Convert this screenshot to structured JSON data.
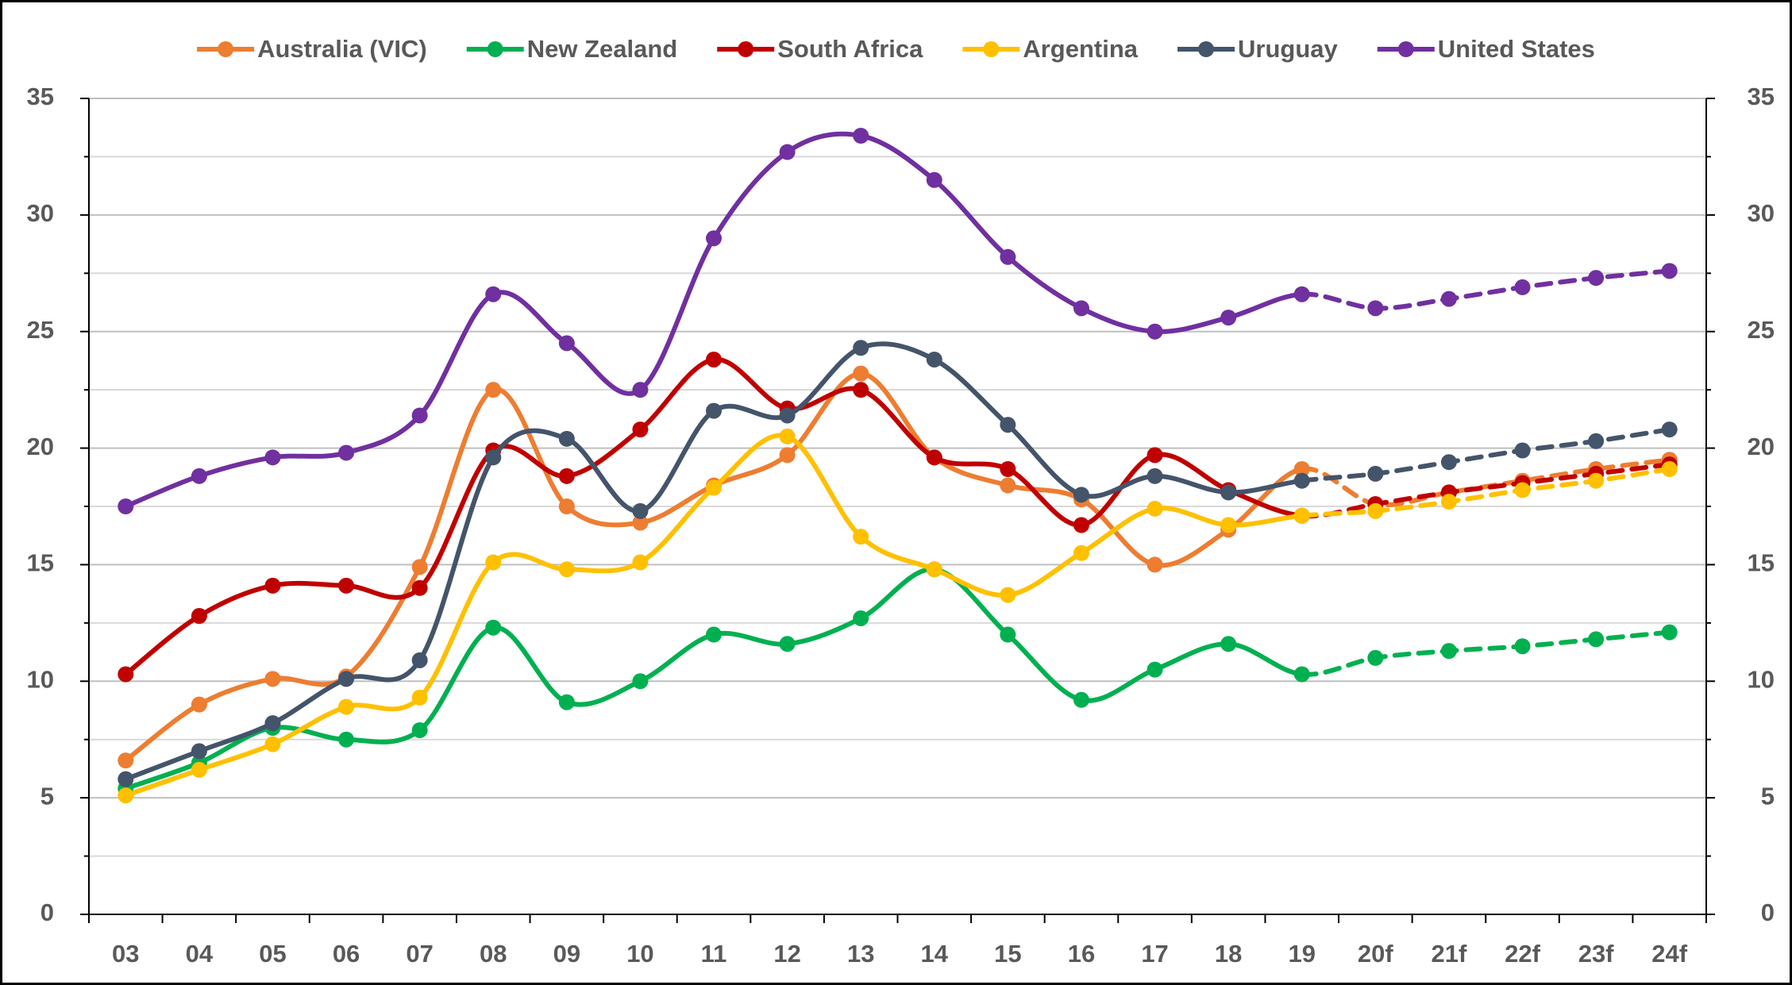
{
  "chart_data": {
    "type": "line",
    "categories": [
      "03",
      "04",
      "05",
      "06",
      "07",
      "08",
      "09",
      "10",
      "11",
      "12",
      "13",
      "14",
      "15",
      "16",
      "17",
      "18",
      "19",
      "20f",
      "21f",
      "22f",
      "23f",
      "24f"
    ],
    "line_styles": [
      "solid",
      "solid",
      "solid",
      "solid",
      "solid",
      "solid",
      "solid",
      "solid",
      "solid",
      "solid",
      "solid",
      "solid",
      "solid",
      "solid",
      "solid",
      "solid",
      "solid",
      "dashed",
      "dashed",
      "dashed",
      "dashed",
      "dashed"
    ],
    "series": [
      {
        "name": "Australia (VIC)",
        "color": "#ED7D31",
        "values": [
          6.6,
          9.0,
          10.1,
          10.2,
          14.9,
          22.5,
          17.5,
          16.8,
          18.4,
          19.7,
          23.2,
          19.6,
          18.4,
          17.8,
          15.0,
          16.5,
          19.1,
          17.6,
          18.1,
          18.6,
          19.1,
          19.5
        ]
      },
      {
        "name": "New Zealand",
        "color": "#00B050",
        "values": [
          5.4,
          6.5,
          8.0,
          7.5,
          7.9,
          12.3,
          9.1,
          10.0,
          12.0,
          11.6,
          12.7,
          14.8,
          12.0,
          9.2,
          10.5,
          11.6,
          10.3,
          11.0,
          11.3,
          11.5,
          11.8,
          12.1
        ]
      },
      {
        "name": "South Africa",
        "color": "#C00000",
        "values": [
          10.3,
          12.8,
          14.1,
          14.1,
          14.0,
          19.9,
          18.8,
          20.8,
          23.8,
          21.7,
          22.5,
          19.6,
          19.1,
          16.7,
          19.7,
          18.2,
          17.1,
          17.6,
          18.1,
          18.5,
          18.9,
          19.3
        ]
      },
      {
        "name": "Argentina",
        "color": "#FFC000",
        "values": [
          5.1,
          6.2,
          7.3,
          8.9,
          9.3,
          15.1,
          14.8,
          15.1,
          18.3,
          20.5,
          16.2,
          14.8,
          13.7,
          15.5,
          17.4,
          16.7,
          17.1,
          17.3,
          17.7,
          18.2,
          18.6,
          19.1
        ]
      },
      {
        "name": "Uruguay",
        "color": "#44546A",
        "values": [
          5.8,
          7.0,
          8.2,
          10.1,
          10.9,
          19.6,
          20.4,
          17.3,
          21.6,
          21.4,
          24.3,
          23.8,
          21.0,
          18.0,
          18.8,
          18.1,
          18.6,
          18.9,
          19.4,
          19.9,
          20.3,
          20.8
        ]
      },
      {
        "name": "United States",
        "color": "#7030A0",
        "values": [
          17.5,
          18.8,
          19.6,
          19.8,
          21.4,
          26.6,
          24.5,
          22.5,
          29.0,
          32.7,
          33.4,
          31.5,
          28.2,
          26.0,
          25.0,
          25.6,
          26.6,
          26.0,
          26.4,
          26.9,
          27.3,
          27.6
        ]
      }
    ],
    "ylim": [
      0,
      35
    ],
    "yticks": [
      0,
      5,
      10,
      15,
      20,
      25,
      30,
      35
    ],
    "minor_yticks": [
      2.5,
      7.5,
      12.5,
      17.5,
      22.5,
      27.5,
      32.5
    ],
    "y2lim": [
      0,
      35
    ],
    "y2ticks": [
      0,
      5,
      10,
      15,
      20,
      25,
      30,
      35
    ],
    "grid": true,
    "legend": "top",
    "smooth": true
  }
}
